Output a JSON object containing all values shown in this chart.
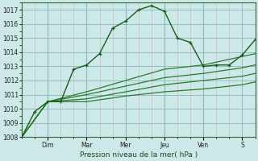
{
  "background_color": "#cce8e8",
  "grid_color_minor": "#b8d8d8",
  "grid_color_major": "#88b8b8",
  "line_color_main": "#1a5c1a",
  "line_color_band": "#2d7a2d",
  "xlabel": "Pression niveau de la mer( hPa )",
  "ylim": [
    1008,
    1017.5
  ],
  "yticks": [
    1008,
    1009,
    1010,
    1011,
    1012,
    1013,
    1014,
    1015,
    1016,
    1017
  ],
  "day_labels": [
    "Dim",
    "Mar",
    "Mer",
    "Jeu",
    "Ven",
    "S"
  ],
  "day_x": [
    2,
    5,
    8,
    11,
    14,
    17
  ],
  "xlim": [
    0,
    18
  ],
  "series_main": [
    [
      0,
      1008.0
    ],
    [
      1,
      1009.8
    ],
    [
      2,
      1010.5
    ],
    [
      3,
      1010.5
    ],
    [
      4,
      1012.8
    ],
    [
      5,
      1013.1
    ],
    [
      6,
      1013.9
    ],
    [
      7,
      1015.7
    ],
    [
      8,
      1016.2
    ],
    [
      9,
      1017.0
    ],
    [
      10,
      1017.3
    ],
    [
      11,
      1016.9
    ],
    [
      12,
      1015.0
    ],
    [
      13,
      1014.7
    ],
    [
      14,
      1013.0
    ],
    [
      15,
      1013.1
    ],
    [
      16,
      1013.1
    ],
    [
      17,
      1013.8
    ],
    [
      18,
      1014.9
    ]
  ],
  "series_band1": [
    [
      0,
      1008.0
    ],
    [
      2,
      1010.5
    ],
    [
      5,
      1011.2
    ],
    [
      8,
      1012.0
    ],
    [
      11,
      1012.8
    ],
    [
      14,
      1013.1
    ],
    [
      17,
      1013.7
    ],
    [
      18,
      1013.9
    ]
  ],
  "series_band2": [
    [
      0,
      1008.0
    ],
    [
      2,
      1010.5
    ],
    [
      5,
      1011.0
    ],
    [
      8,
      1011.6
    ],
    [
      11,
      1012.2
    ],
    [
      14,
      1012.5
    ],
    [
      17,
      1012.9
    ],
    [
      18,
      1013.1
    ]
  ],
  "series_band3": [
    [
      0,
      1008.0
    ],
    [
      2,
      1010.5
    ],
    [
      5,
      1010.7
    ],
    [
      8,
      1011.2
    ],
    [
      11,
      1011.7
    ],
    [
      14,
      1012.0
    ],
    [
      17,
      1012.3
    ],
    [
      18,
      1012.5
    ]
  ],
  "series_band4": [
    [
      0,
      1008.0
    ],
    [
      2,
      1010.5
    ],
    [
      5,
      1010.5
    ],
    [
      8,
      1010.9
    ],
    [
      11,
      1011.2
    ],
    [
      14,
      1011.4
    ],
    [
      17,
      1011.7
    ],
    [
      18,
      1011.9
    ]
  ]
}
